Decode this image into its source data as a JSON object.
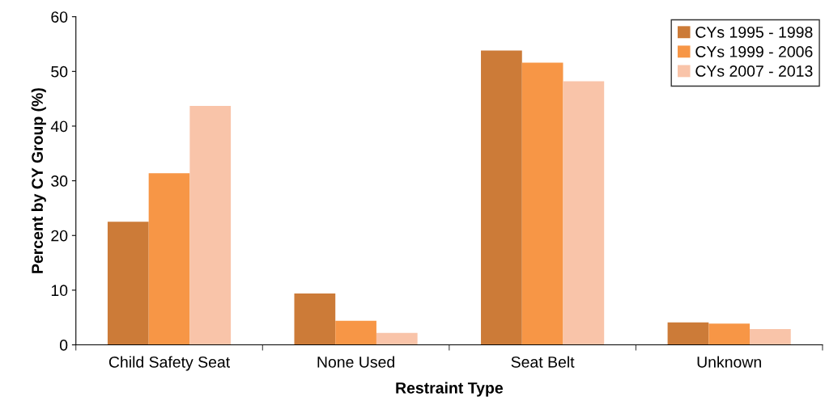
{
  "chart_data": {
    "type": "bar",
    "xlabel": "Restraint Type",
    "ylabel": "Percent by CY Group (%)",
    "categories": [
      "Child Safety Seat",
      "None Used",
      "Seat Belt",
      "Unknown"
    ],
    "series": [
      {
        "name": "CYs 1995 - 1998",
        "color": "#cc7b38",
        "values": [
          22.5,
          9.4,
          53.8,
          4.1
        ]
      },
      {
        "name": "CYs 1999 - 2006",
        "color": "#f79646",
        "values": [
          31.4,
          4.4,
          51.6,
          3.9
        ]
      },
      {
        "name": "CYs 2007 - 2013",
        "color": "#f9c4a9",
        "values": [
          43.7,
          2.2,
          48.2,
          2.9
        ]
      }
    ],
    "ylim": [
      0,
      60
    ],
    "yticks": [
      0,
      10,
      20,
      30,
      40,
      50,
      60
    ],
    "grid": false,
    "legend": "top right"
  }
}
